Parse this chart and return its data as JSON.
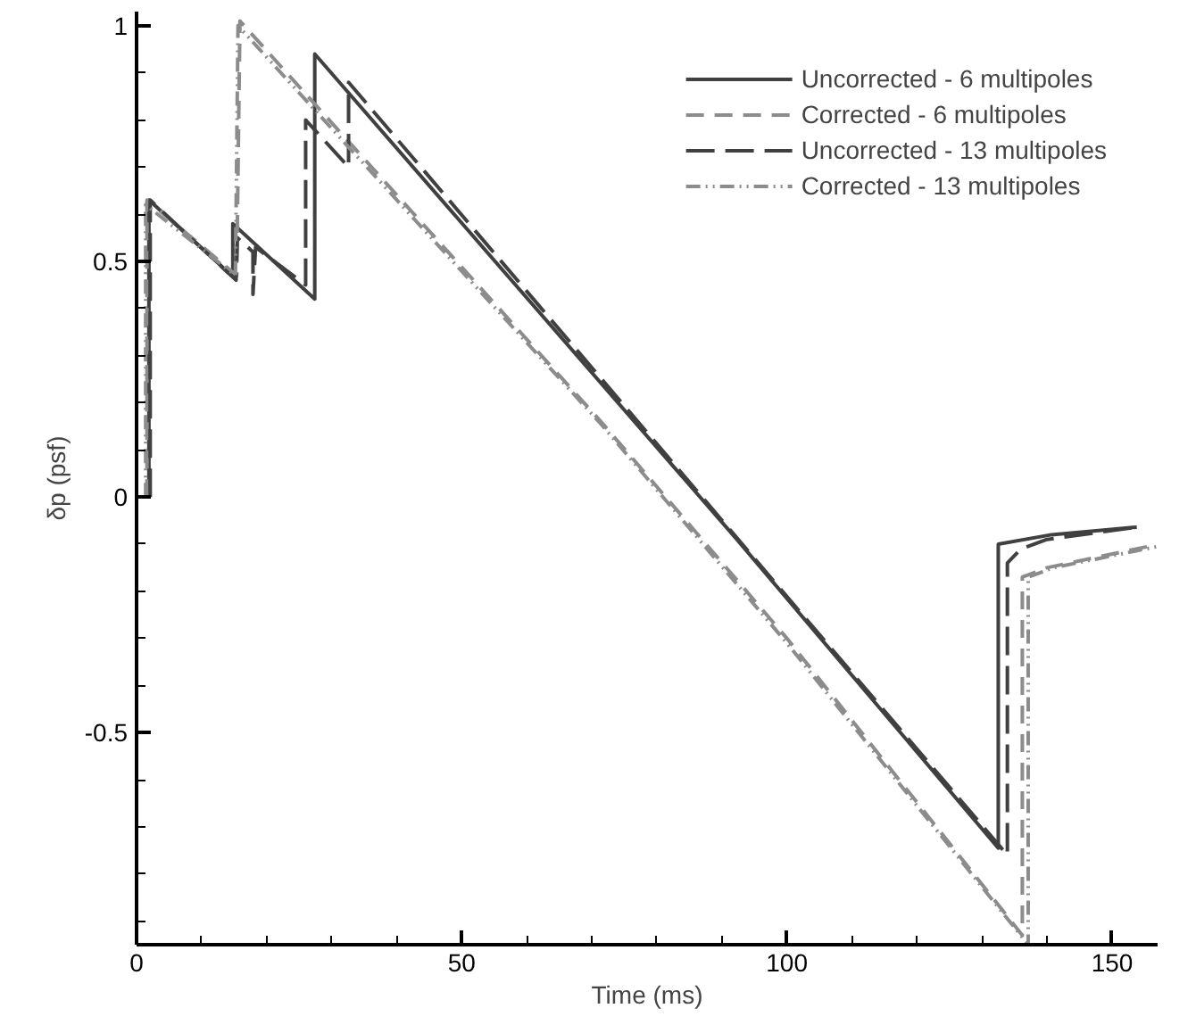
{
  "chart_data": {
    "type": "line",
    "xlabel": "Time (ms)",
    "ylabel": "δp (psf)",
    "xlim": [
      0,
      157
    ],
    "ylim": [
      -0.95,
      1.03
    ],
    "xticks": [
      0,
      50,
      100,
      150
    ],
    "yticks": [
      {
        "value": -0.5,
        "label": "-0.5"
      },
      0,
      0.5,
      1
    ],
    "grid": false,
    "legend": "top right",
    "marker": "none",
    "series": [
      {
        "name": "Uncorrected - 6 multipoles",
        "color": "#404040",
        "line_style": "solid",
        "x": [
          1.9,
          1.9,
          14.8,
          14.8,
          27.4,
          27.4,
          92.3,
          132.5,
          132.5,
          140.7,
          153.8
        ],
        "values": [
          0,
          0.63,
          0.468,
          0.58,
          0.42,
          0.94,
          -0.09,
          -0.745,
          -0.1,
          -0.08,
          -0.064
        ]
      },
      {
        "name": "Corrected - 6 multipoles",
        "color": "#8c8c8c",
        "line_style": "dashed",
        "x": [
          1.6,
          1.6,
          15.4,
          15.9,
          71.4,
          100,
          136.2,
          136.2,
          140,
          155.5
        ],
        "values": [
          0,
          0.63,
          0.47,
          1.01,
          0.16,
          -0.3,
          -0.93,
          -0.17,
          -0.15,
          -0.105
        ]
      },
      {
        "name": "Uncorrected - 13 multipoles",
        "color": "#404040",
        "line_style": "dashed",
        "x": [
          2.1,
          2.1,
          15.3,
          15.5,
          17.9,
          17.9,
          18.3,
          26.0,
          26.0,
          32.6,
          32.6,
          133.9,
          133.9,
          136,
          140,
          153.8
        ],
        "values": [
          0,
          0.63,
          0.46,
          0.55,
          0.52,
          0.43,
          0.53,
          0.45,
          0.8,
          0.7,
          0.88,
          -0.76,
          -0.14,
          -0.11,
          -0.09,
          -0.064
        ]
      },
      {
        "name": "Corrected - 13 multipoles",
        "color": "#8c8c8c",
        "line_style": "dotted",
        "x": [
          1.4,
          1.4,
          15.2,
          15.6,
          71.4,
          100,
          137.1,
          137.1,
          141,
          157
        ],
        "values": [
          0,
          0.62,
          0.47,
          1.0,
          0.155,
          -0.31,
          -0.95,
          -0.17,
          -0.15,
          -0.105
        ]
      }
    ]
  }
}
